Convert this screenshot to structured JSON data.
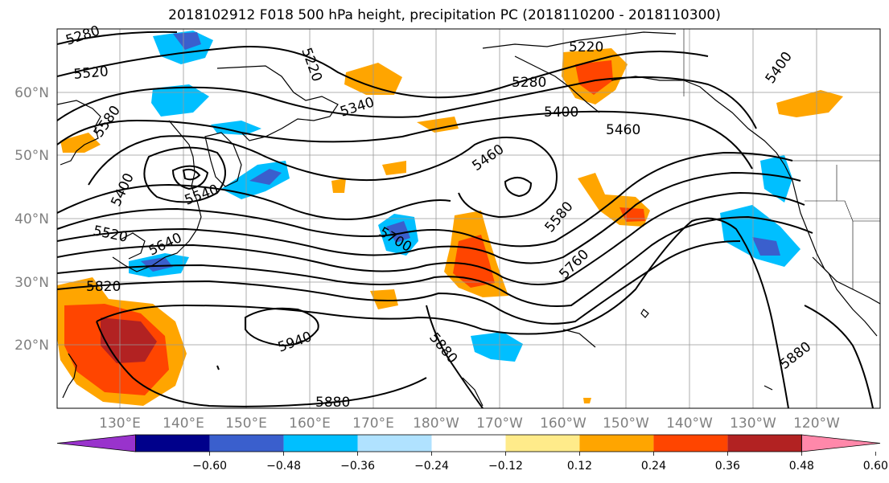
{
  "title": "2018102912 F018 500 hPa height, precipitation PC (2018110200 - 2018110300)",
  "map": {
    "lat_labels": [
      "60°N",
      "50°N",
      "40°N",
      "30°N",
      "20°N"
    ],
    "lon_labels": [
      "130°E",
      "140°E",
      "150°E",
      "160°E",
      "170°E",
      "180°W",
      "170°W",
      "160°W",
      "150°W",
      "140°W",
      "130°W",
      "120°W"
    ],
    "contour_labels": [
      "5280",
      "5520",
      "5580",
      "5400",
      "5540",
      "5520",
      "5640",
      "5820",
      "5220",
      "5340",
      "5460",
      "5700",
      "5880",
      "5940",
      "5220",
      "5280",
      "5400",
      "5460",
      "5580",
      "5760",
      "5400",
      "5880",
      "5880"
    ],
    "grid": true
  },
  "colorbar": {
    "ticks": [
      "−0.60",
      "−0.48",
      "−0.36",
      "−0.24",
      "−0.12",
      "0.12",
      "0.24",
      "0.36",
      "0.48",
      "0.60"
    ],
    "colors": [
      "#9933cc",
      "#00008b",
      "#3a5fcd",
      "#00bfff",
      "#b0e2ff",
      "#ffffff",
      "#ffeb8a",
      "#ffa500",
      "#ff4500",
      "#b22222",
      "#ff88aa"
    ]
  }
}
